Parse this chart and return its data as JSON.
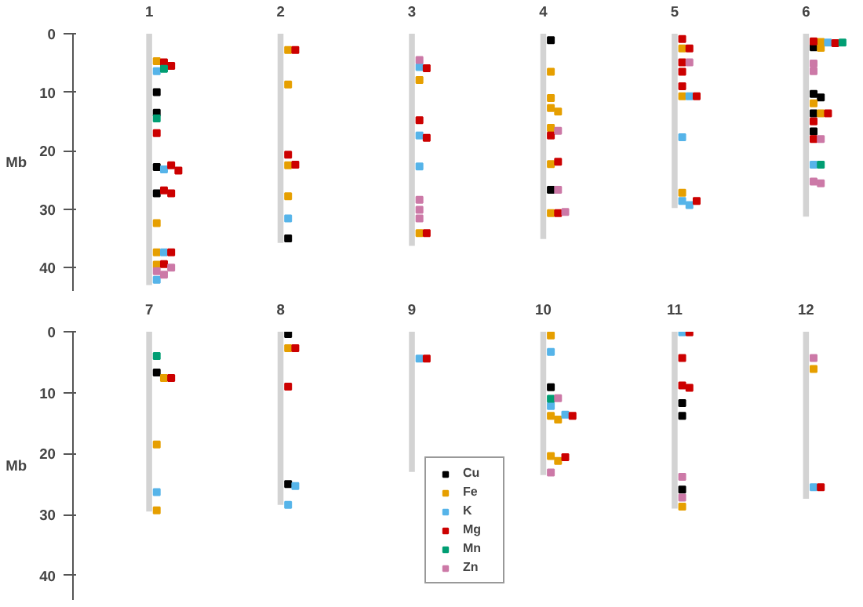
{
  "chart_data": [
    {
      "type": "bar",
      "categories": [
        "1",
        "2",
        "3",
        "4",
        "5",
        "6"
      ],
      "ylabel": "Mb",
      "ylim": [
        44,
        0
      ],
      "yticks": [
        0,
        10,
        20,
        30,
        40
      ],
      "grid": false,
      "marker": "square",
      "series": [
        {
          "color": "#d3d3d3",
          "values": [
            43.0,
            35.8,
            36.3,
            35.1,
            29.8,
            31.3
          ]
        },
        {
          "type": "scatter",
          "color": "#000000",
          "x": [
            "1",
            "1",
            "1",
            "1",
            "2",
            "4",
            "4",
            "6",
            "6",
            "6",
            "6",
            "6"
          ],
          "values": [
            10.0,
            13.5,
            22.8,
            27.3,
            35.0,
            1.1,
            26.7,
            2.3,
            10.3,
            10.9,
            13.6,
            16.7
          ]
        },
        {
          "type": "scatter",
          "color": "#e69f00",
          "x": [
            "1",
            "1",
            "1",
            "1",
            "2",
            "2",
            "2",
            "2",
            "3",
            "3",
            "4",
            "4",
            "4",
            "4",
            "4",
            "4",
            "4",
            "5",
            "5",
            "5",
            "6",
            "6",
            "6",
            "6"
          ],
          "values": [
            4.7,
            32.4,
            37.4,
            39.5,
            2.8,
            8.7,
            22.5,
            27.8,
            7.9,
            34.1,
            6.5,
            11.0,
            12.7,
            13.3,
            16.1,
            22.3,
            30.7,
            2.5,
            10.7,
            27.2,
            1.4,
            2.4,
            11.9,
            13.6
          ]
        },
        {
          "type": "scatter",
          "color": "#56b4e9",
          "x": [
            "1",
            "1",
            "1",
            "1",
            "2",
            "3",
            "3",
            "3",
            "5",
            "5",
            "5",
            "5",
            "6",
            "6"
          ],
          "values": [
            6.4,
            23.2,
            37.4,
            42.1,
            31.6,
            5.7,
            17.4,
            22.7,
            10.7,
            17.7,
            28.6,
            29.3,
            1.5,
            22.4
          ]
        },
        {
          "type": "scatter",
          "color": "#cc0000",
          "x": [
            "1",
            "1",
            "1",
            "1",
            "1",
            "1",
            "1",
            "1",
            "1",
            "2",
            "2",
            "2",
            "3",
            "3",
            "3",
            "3",
            "4",
            "4",
            "4",
            "5",
            "5",
            "5",
            "5",
            "5",
            "5",
            "5",
            "6",
            "6",
            "6",
            "6",
            "6"
          ],
          "values": [
            4.9,
            5.5,
            17.0,
            22.5,
            23.4,
            26.8,
            27.3,
            37.4,
            39.4,
            2.8,
            20.7,
            22.4,
            5.9,
            14.8,
            17.8,
            34.1,
            17.4,
            21.9,
            30.7,
            0.9,
            2.5,
            4.9,
            6.5,
            9.0,
            10.7,
            28.6,
            1.3,
            1.6,
            13.6,
            15.0,
            18.0
          ]
        },
        {
          "type": "scatter",
          "color": "#009e73",
          "x": [
            "1",
            "1",
            "6",
            "6"
          ],
          "values": [
            6.0,
            14.5,
            1.5,
            22.4
          ]
        },
        {
          "type": "scatter",
          "color": "#cc79a7",
          "x": [
            "1",
            "1",
            "1",
            "3",
            "3",
            "3",
            "3",
            "4",
            "4",
            "4",
            "5",
            "6",
            "6",
            "6",
            "6",
            "6"
          ],
          "values": [
            40.0,
            40.6,
            41.2,
            4.5,
            28.4,
            30.1,
            31.6,
            16.6,
            26.7,
            30.5,
            4.9,
            5.1,
            6.4,
            18.0,
            25.3,
            25.6
          ]
        }
      ]
    },
    {
      "type": "bar",
      "categories": [
        "7",
        "8",
        "9",
        "10",
        "11",
        "12"
      ],
      "ylabel": "Mb",
      "ylim": [
        44,
        0
      ],
      "yticks": [
        0,
        10,
        20,
        30,
        40
      ],
      "grid": false,
      "legend": "bottom",
      "marker": "square",
      "series": [
        {
          "color": "#d3d3d3",
          "values": [
            29.5,
            28.4,
            23.0,
            23.5,
            29.0,
            27.4
          ]
        },
        {
          "type": "scatter",
          "name": "Cu",
          "color": "#000000",
          "x": [
            "7",
            "8",
            "8",
            "10",
            "11",
            "11",
            "11"
          ],
          "values": [
            6.7,
            0.4,
            25.0,
            9.1,
            11.7,
            13.8,
            25.9
          ]
        },
        {
          "type": "scatter",
          "name": "Fe",
          "color": "#e69f00",
          "x": [
            "7",
            "7",
            "7",
            "8",
            "10",
            "10",
            "10",
            "10",
            "10",
            "11",
            "12"
          ],
          "values": [
            7.6,
            18.5,
            29.3,
            2.7,
            0.6,
            13.8,
            14.4,
            20.4,
            21.2,
            28.7,
            6.1
          ]
        },
        {
          "type": "scatter",
          "name": "K",
          "color": "#56b4e9",
          "x": [
            "7",
            "8",
            "8",
            "9",
            "10",
            "10",
            "10",
            "11",
            "12"
          ],
          "values": [
            26.3,
            25.3,
            28.4,
            4.4,
            3.3,
            12.2,
            13.6,
            0.1,
            25.5
          ]
        },
        {
          "type": "scatter",
          "name": "Mg",
          "color": "#cc0000",
          "x": [
            "7",
            "8",
            "8",
            "9",
            "10",
            "10",
            "11",
            "11",
            "11",
            "11",
            "12"
          ],
          "values": [
            7.6,
            2.7,
            9.0,
            4.4,
            13.8,
            20.6,
            0.1,
            4.3,
            8.8,
            9.2,
            25.5
          ]
        },
        {
          "type": "scatter",
          "name": "Mn",
          "color": "#009e73",
          "x": [
            "7",
            "10"
          ],
          "values": [
            4.0,
            11.0
          ]
        },
        {
          "type": "scatter",
          "name": "Zn",
          "color": "#cc79a7",
          "x": [
            "10",
            "10",
            "11",
            "11",
            "12"
          ],
          "values": [
            10.9,
            23.1,
            23.8,
            27.2,
            4.3
          ]
        }
      ]
    }
  ]
}
